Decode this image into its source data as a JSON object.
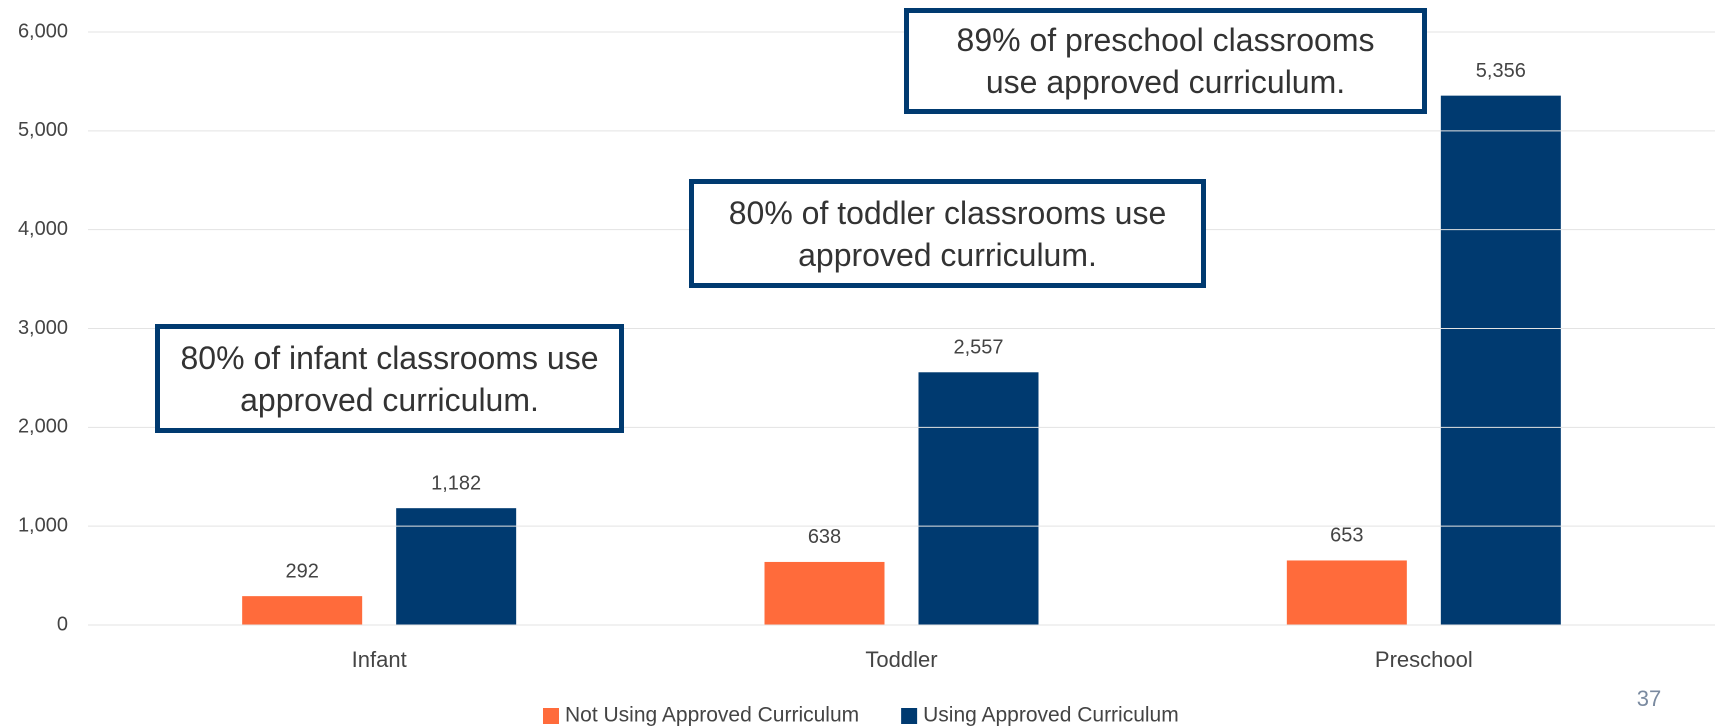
{
  "chart_data": {
    "type": "bar",
    "categories": [
      "Infant",
      "Toddler",
      "Preschool"
    ],
    "series": [
      {
        "name": "Not Using Approved Curriculum",
        "color": "#FF6B3B",
        "values": [
          292,
          638,
          653
        ],
        "value_labels": [
          "292",
          "638",
          "653"
        ]
      },
      {
        "name": "Using Approved Curriculum",
        "color": "#003A70",
        "values": [
          1182,
          2557,
          5356
        ],
        "value_labels": [
          "1,182",
          "2,557",
          "5,356"
        ]
      }
    ],
    "ylim": [
      0,
      6000
    ],
    "yticks": [
      0,
      {
        "value": 1000,
        "label": "1,000"
      },
      {
        "value": 2000,
        "label": "2,000"
      },
      {
        "value": 3000,
        "label": "3,000"
      },
      {
        "value": 4000,
        "label": "4,000"
      },
      {
        "value": 5000,
        "label": "5,000"
      },
      {
        "value": 6000,
        "label": "6,000"
      }
    ],
    "grid": true,
    "legend": "bottom",
    "annotations": [
      {
        "text": "80% of infant classrooms use approved curriculum."
      },
      {
        "text": "80% of toddler classrooms use approved curriculum."
      },
      {
        "text": "89% of preschool classrooms use approved curriculum."
      }
    ],
    "page_number": "37"
  }
}
